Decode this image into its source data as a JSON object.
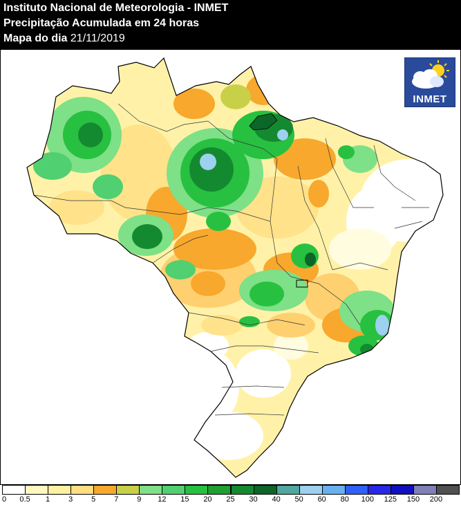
{
  "header": {
    "line1": "Instituto Nacional de Meteorologia - INMET",
    "line2": "Precipitação Acumulada em 24 horas",
    "line3_label": "Mapa do dia",
    "line3_date": "21/11/2019"
  },
  "logo": {
    "text": "INMET",
    "icon": "cloud-sun-icon"
  },
  "legend": {
    "colors": [
      "#ffffff",
      "#fff8c0",
      "#fff0a0",
      "#ffdd80",
      "#f8a82c",
      "#c8d048",
      "#7ee087",
      "#50d070",
      "#28c040",
      "#20a030",
      "#148a30",
      "#0c6628",
      "#50a8a0",
      "#9ed0f0",
      "#68b0f0",
      "#3060f8",
      "#2828e8",
      "#1010c0",
      "#8080b8",
      "#505050"
    ],
    "labels": [
      "0",
      "0.5",
      "1",
      "3",
      "5",
      "7",
      "9",
      "12",
      "15",
      "20",
      "25",
      "30",
      "40",
      "50",
      "60",
      "80",
      "100",
      "125",
      "150",
      "200"
    ]
  }
}
